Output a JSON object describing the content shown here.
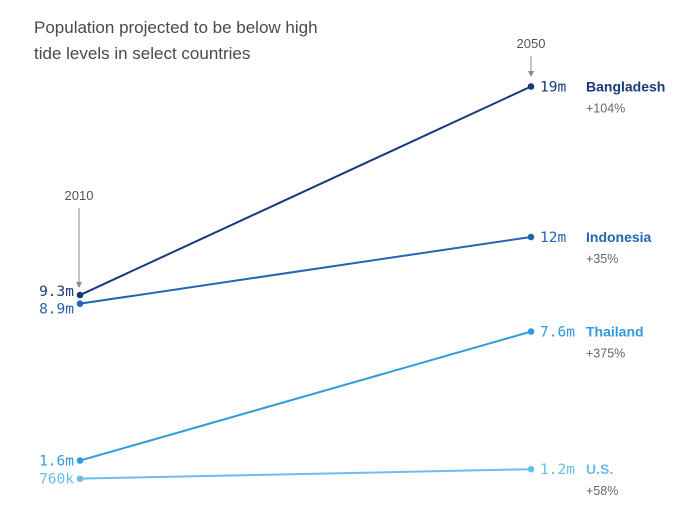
{
  "chart_data": {
    "type": "slope",
    "title_lines": [
      "Population projected to be below high",
      "tide levels in select countries"
    ],
    "start_year": "2010",
    "end_year": "2050",
    "unit": "people",
    "series": [
      {
        "name": "Bangladesh",
        "start_value": 9300000,
        "end_value": 19000000,
        "start_label": "9.3m",
        "end_label": "19m",
        "change": "+104%",
        "color": "#173b7a"
      },
      {
        "name": "Indonesia",
        "start_value": 8900000,
        "end_value": 12000000,
        "start_label": "8.9m",
        "end_label": "12m",
        "change": "+35%",
        "color": "#2166b5"
      },
      {
        "name": "Thailand",
        "start_value": 1600000,
        "end_value": 7600000,
        "start_label": "1.6m",
        "end_label": "7.6m",
        "change": "+375%",
        "color": "#2f9ae0"
      },
      {
        "name": "U.S.",
        "start_value": 760000,
        "end_value": 1200000,
        "start_label": "760k",
        "end_label": "1.2m",
        "change": "+58%",
        "color": "#6cbdee"
      }
    ],
    "ylim": [
      0,
      20000000
    ]
  }
}
